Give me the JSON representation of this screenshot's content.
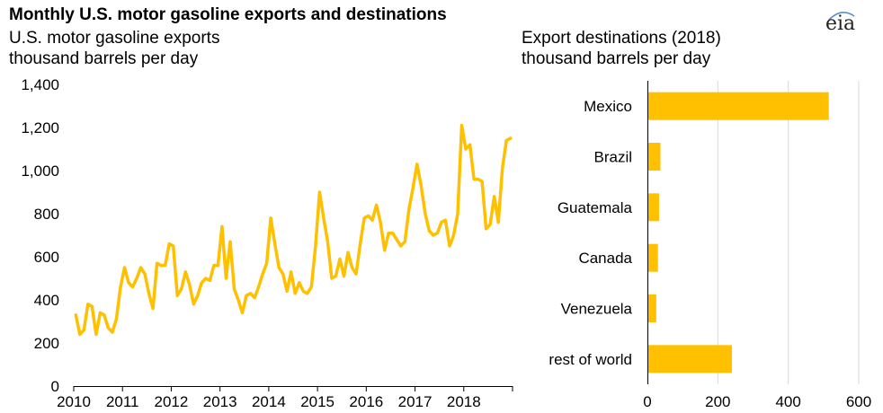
{
  "title": "Monthly U.S. motor gasoline exports and destinations",
  "logo_text": "eia",
  "colors": {
    "series": "#FFC000",
    "grid": "#D9D9D9",
    "axis": "#000000"
  },
  "chart_data": [
    {
      "type": "line",
      "title": "U.S. motor gasoline exports",
      "ylabel": "thousand barrels per day",
      "xlabel": "",
      "x_tick_labels": [
        "2010",
        "2011",
        "2012",
        "2013",
        "2014",
        "2015",
        "2016",
        "2017",
        "2018"
      ],
      "y_tick_labels": [
        "0",
        "200",
        "400",
        "600",
        "800",
        "1,000",
        "1,200",
        "1,400"
      ],
      "ylim": [
        0,
        1400
      ],
      "xlim": [
        "2010-01",
        "2018-12"
      ],
      "grid": false,
      "series": [
        {
          "x": [
            "2010-01",
            "2010-02",
            "2010-03",
            "2010-04",
            "2010-05",
            "2010-06",
            "2010-07",
            "2010-08",
            "2010-09",
            "2010-10",
            "2010-11",
            "2010-12",
            "2011-01",
            "2011-02",
            "2011-03",
            "2011-04",
            "2011-05",
            "2011-06",
            "2011-07",
            "2011-08",
            "2011-09",
            "2011-10",
            "2011-11",
            "2011-12",
            "2012-01",
            "2012-02",
            "2012-03",
            "2012-04",
            "2012-05",
            "2012-06",
            "2012-07",
            "2012-08",
            "2012-09",
            "2012-10",
            "2012-11",
            "2012-12",
            "2013-01",
            "2013-02",
            "2013-03",
            "2013-04",
            "2013-05",
            "2013-06",
            "2013-07",
            "2013-08",
            "2013-09",
            "2013-10",
            "2013-11",
            "2013-12",
            "2014-01",
            "2014-02",
            "2014-03",
            "2014-04",
            "2014-05",
            "2014-06",
            "2014-07",
            "2014-08",
            "2014-09",
            "2014-10",
            "2014-11",
            "2014-12",
            "2015-01",
            "2015-02",
            "2015-03",
            "2015-04",
            "2015-05",
            "2015-06",
            "2015-07",
            "2015-08",
            "2015-09",
            "2015-10",
            "2015-11",
            "2015-12",
            "2016-01",
            "2016-02",
            "2016-03",
            "2016-04",
            "2016-05",
            "2016-06",
            "2016-07",
            "2016-08",
            "2016-09",
            "2016-10",
            "2016-11",
            "2016-12",
            "2017-01",
            "2017-02",
            "2017-03",
            "2017-04",
            "2017-05",
            "2017-06",
            "2017-07",
            "2017-08",
            "2017-09",
            "2017-10",
            "2017-11",
            "2017-12",
            "2018-01",
            "2018-02",
            "2018-03",
            "2018-04",
            "2018-05",
            "2018-06",
            "2018-07",
            "2018-08",
            "2018-09",
            "2018-10",
            "2018-11",
            "2018-12"
          ],
          "values": [
            330,
            240,
            260,
            380,
            370,
            240,
            340,
            330,
            270,
            250,
            310,
            460,
            550,
            480,
            460,
            500,
            550,
            520,
            430,
            360,
            570,
            560,
            560,
            660,
            650,
            420,
            450,
            530,
            470,
            380,
            420,
            480,
            500,
            490,
            560,
            560,
            740,
            500,
            670,
            450,
            400,
            340,
            420,
            430,
            410,
            460,
            520,
            570,
            780,
            660,
            550,
            520,
            440,
            530,
            430,
            480,
            440,
            430,
            460,
            650,
            900,
            780,
            670,
            500,
            510,
            590,
            510,
            620,
            550,
            520,
            660,
            780,
            790,
            770,
            840,
            760,
            630,
            710,
            710,
            680,
            650,
            670,
            820,
            920,
            1030,
            930,
            800,
            720,
            700,
            710,
            760,
            770,
            650,
            700,
            800,
            1210,
            1100,
            1120,
            960,
            960,
            950,
            730,
            750,
            880,
            760,
            1010,
            1140,
            1150
          ]
        }
      ]
    },
    {
      "type": "bar",
      "orientation": "horizontal",
      "title": "Export destinations (2018)",
      "xlabel": "thousand barrels per day",
      "categories": [
        "Mexico",
        "Brazil",
        "Guatemala",
        "Canada",
        "Venezuela",
        "rest of world"
      ],
      "values": [
        515,
        37,
        33,
        30,
        25,
        240
      ],
      "x_tick_labels": [
        "0",
        "200",
        "400",
        "600"
      ],
      "xlim": [
        0,
        600
      ],
      "grid": true
    }
  ]
}
